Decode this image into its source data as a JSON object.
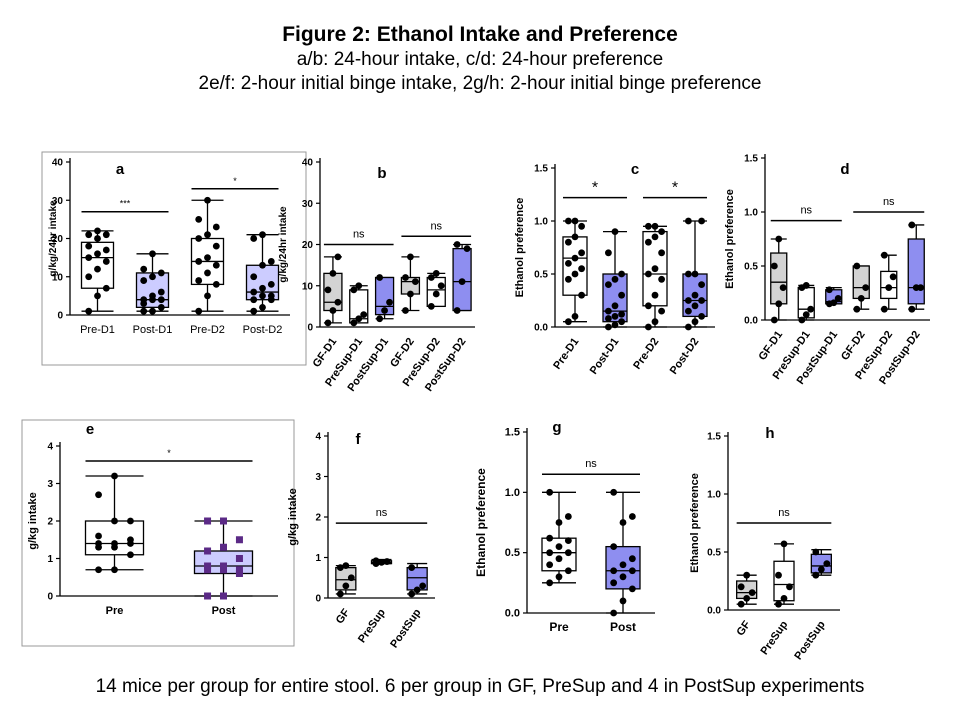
{
  "header": {
    "title": "Figure 2: Ethanol Intake and Preference",
    "lines": [
      "a/b: 24-hour intake, c/d: 24-hour preference",
      "2e/f: 2-hour initial binge intake, 2g/h: 2-hour initial binge preference"
    ]
  },
  "footer": "14 mice per group for entire stool. 6 per group in GF, PreSup and 4 in PostSup experiments",
  "colors": {
    "gray": "#d3d3d3",
    "blue": "#8e8ef0",
    "lightblue": "#ccccff",
    "white": "#ffffff",
    "purple": "#5b2a86"
  },
  "chart_data": [
    {
      "panel": "a",
      "type": "box",
      "ylabel": "g/kg/24hr intake",
      "ylim": [
        0,
        40
      ],
      "yticks": [
        0,
        10,
        20,
        30,
        40
      ],
      "categories": [
        "Pre-D1",
        "Post-D1",
        "Pre-D2",
        "Post-D2"
      ],
      "boxes": [
        {
          "min": 1,
          "q1": 7,
          "median": 15,
          "q3": 19,
          "max": 22,
          "fill": "white",
          "points": [
            1,
            5,
            7,
            10,
            12,
            14,
            15,
            16,
            17,
            18,
            20,
            21,
            21,
            22
          ]
        },
        {
          "min": 1,
          "q1": 2,
          "median": 4,
          "q3": 11,
          "max": 16,
          "fill": "lightblue",
          "points": [
            1,
            1,
            2,
            3,
            4,
            4,
            4,
            5,
            6,
            9,
            10,
            11,
            12,
            16
          ]
        },
        {
          "min": 1,
          "q1": 8,
          "median": 14,
          "q3": 20,
          "max": 30,
          "fill": "white",
          "points": [
            1,
            5,
            8,
            9,
            11,
            13,
            14,
            15,
            18,
            20,
            21,
            23,
            25,
            30
          ]
        },
        {
          "min": 1,
          "q1": 4,
          "median": 6,
          "q3": 13,
          "max": 21,
          "fill": "lightblue",
          "points": [
            1,
            2,
            4,
            4,
            5,
            5,
            6,
            7,
            8,
            10,
            13,
            14,
            20,
            21
          ]
        }
      ],
      "brackets": [
        {
          "from": 0,
          "to": 1,
          "y": 27,
          "label": "***"
        },
        {
          "from": 2,
          "to": 3,
          "y": 33,
          "label": "*"
        }
      ]
    },
    {
      "panel": "b",
      "type": "box",
      "ylabel": "g/kg/24hr intake",
      "ylim": [
        0,
        40
      ],
      "yticks": [
        0,
        10,
        20,
        30,
        40
      ],
      "categories": [
        "GF-D1",
        "PreSup-D1",
        "PostSup-D1",
        "GF-D2",
        "PreSup-D2",
        "PostSup-D2"
      ],
      "boxes": [
        {
          "min": 1,
          "q1": 4,
          "median": 6,
          "q3": 13,
          "max": 17,
          "fill": "gray",
          "points": [
            1,
            4,
            6,
            9,
            13,
            17
          ]
        },
        {
          "min": 1,
          "q1": 1,
          "median": 2,
          "q3": 9,
          "max": 10,
          "fill": "white",
          "points": [
            1,
            2,
            3,
            9,
            10
          ]
        },
        {
          "min": 2,
          "q1": 3,
          "median": 5,
          "q3": 12,
          "max": 12,
          "fill": "blue",
          "points": [
            2,
            4,
            6,
            12
          ]
        },
        {
          "min": 4,
          "q1": 8,
          "median": 11,
          "q3": 12,
          "max": 17,
          "fill": "gray",
          "points": [
            4,
            8,
            11,
            12,
            17
          ]
        },
        {
          "min": 5,
          "q1": 5,
          "median": 9,
          "q3": 12,
          "max": 13,
          "fill": "white",
          "points": [
            5,
            8,
            10,
            12,
            13
          ]
        },
        {
          "min": 4,
          "q1": 4,
          "median": 11,
          "q3": 19,
          "max": 20,
          "fill": "blue",
          "points": [
            4,
            11,
            19,
            20
          ]
        }
      ],
      "brackets": [
        {
          "from": 0,
          "to": 2,
          "y": 20,
          "label": "ns"
        },
        {
          "from": 3,
          "to": 5,
          "y": 22,
          "label": "ns"
        }
      ]
    },
    {
      "panel": "c",
      "type": "box",
      "ylabel": "Ethanol preference",
      "ylim": [
        0,
        1.5
      ],
      "yticks": [
        0.0,
        0.5,
        1.0,
        1.5
      ],
      "categories": [
        "Pre-D1",
        "Post-D1",
        "Pre-D2",
        "Post-D2"
      ],
      "boxes": [
        {
          "min": 0.05,
          "q1": 0.3,
          "median": 0.65,
          "q3": 0.85,
          "max": 1.0,
          "fill": "white",
          "points": [
            0.05,
            0.1,
            0.3,
            0.45,
            0.5,
            0.55,
            0.6,
            0.65,
            0.7,
            0.8,
            0.85,
            0.95,
            1.0,
            1.0
          ]
        },
        {
          "min": 0.0,
          "q1": 0.05,
          "median": 0.15,
          "q3": 0.5,
          "max": 0.9,
          "fill": "blue",
          "points": [
            0.0,
            0.02,
            0.05,
            0.08,
            0.1,
            0.12,
            0.15,
            0.2,
            0.3,
            0.4,
            0.45,
            0.5,
            0.7,
            0.9
          ]
        },
        {
          "min": 0.0,
          "q1": 0.2,
          "median": 0.5,
          "q3": 0.9,
          "max": 0.95,
          "fill": "white",
          "points": [
            0.0,
            0.05,
            0.15,
            0.2,
            0.3,
            0.45,
            0.5,
            0.55,
            0.7,
            0.8,
            0.85,
            0.9,
            0.95,
            0.95
          ]
        },
        {
          "min": 0.0,
          "q1": 0.1,
          "median": 0.25,
          "q3": 0.5,
          "max": 1.0,
          "fill": "blue",
          "points": [
            0.0,
            0.05,
            0.1,
            0.15,
            0.2,
            0.25,
            0.25,
            0.3,
            0.4,
            0.5,
            0.5,
            1.0,
            1.0
          ]
        }
      ],
      "brackets": [
        {
          "from": 0,
          "to": 1,
          "y": 1.22,
          "label": "*"
        },
        {
          "from": 2,
          "to": 3,
          "y": 1.22,
          "label": "*"
        }
      ]
    },
    {
      "panel": "d",
      "type": "box",
      "ylabel": "Ethanol preference",
      "ylim": [
        0,
        1.5
      ],
      "yticks": [
        0.0,
        0.5,
        1.0,
        1.5
      ],
      "categories": [
        "GF-D1",
        "PreSup-D1",
        "PostSup-D1",
        "GF-D2",
        "PreSup-D2",
        "PostSup-D2"
      ],
      "boxes": [
        {
          "min": 0.0,
          "q1": 0.15,
          "median": 0.35,
          "q3": 0.62,
          "max": 0.75,
          "fill": "gray",
          "points": [
            0.0,
            0.15,
            0.3,
            0.5,
            0.75
          ]
        },
        {
          "min": 0.0,
          "q1": 0.02,
          "median": 0.1,
          "q3": 0.3,
          "max": 0.32,
          "fill": "white",
          "points": [
            0.0,
            0.05,
            0.1,
            0.3,
            0.32
          ]
        },
        {
          "min": 0.15,
          "q1": 0.15,
          "median": 0.17,
          "q3": 0.28,
          "max": 0.3,
          "fill": "blue",
          "points": [
            0.15,
            0.16,
            0.2,
            0.28
          ]
        },
        {
          "min": 0.1,
          "q1": 0.2,
          "median": 0.3,
          "q3": 0.5,
          "max": 0.5,
          "fill": "gray",
          "points": [
            0.1,
            0.2,
            0.3,
            0.5
          ]
        },
        {
          "min": 0.1,
          "q1": 0.2,
          "median": 0.3,
          "q3": 0.45,
          "max": 0.6,
          "fill": "white",
          "points": [
            0.1,
            0.3,
            0.4,
            0.6
          ]
        },
        {
          "min": 0.1,
          "q1": 0.15,
          "median": 0.3,
          "q3": 0.75,
          "max": 0.88,
          "fill": "blue",
          "points": [
            0.1,
            0.3,
            0.3,
            0.88
          ]
        }
      ],
      "brackets": [
        {
          "from": 0,
          "to": 2,
          "y": 0.92,
          "label": "ns"
        },
        {
          "from": 3,
          "to": 5,
          "y": 1.0,
          "label": "ns"
        }
      ]
    },
    {
      "panel": "e",
      "type": "box",
      "ylabel": "g/kg intake",
      "ylim": [
        0,
        4
      ],
      "yticks": [
        0,
        1,
        2,
        3,
        4
      ],
      "categories": [
        "Pre",
        "Post"
      ],
      "boxes": [
        {
          "min": 0.7,
          "q1": 1.1,
          "median": 1.4,
          "q3": 2.0,
          "max": 3.2,
          "fill": "white",
          "marker": "circle",
          "color": "#000000",
          "points": [
            0.7,
            0.7,
            1.1,
            1.3,
            1.3,
            1.4,
            1.4,
            1.4,
            1.5,
            1.6,
            2.0,
            2.0,
            2.7,
            3.2
          ]
        },
        {
          "min": 0.0,
          "q1": 0.6,
          "median": 0.8,
          "q3": 1.2,
          "max": 2.0,
          "fill": "lightblue",
          "marker": "square",
          "color": "#5b2a86",
          "points": [
            0.0,
            0.0,
            0.6,
            0.7,
            0.7,
            0.7,
            0.8,
            0.8,
            1.0,
            1.2,
            1.3,
            1.5,
            2.0,
            2.0
          ]
        }
      ],
      "brackets": [
        {
          "from": 0,
          "to": 1,
          "y": 3.6,
          "label": "*"
        }
      ]
    },
    {
      "panel": "f",
      "type": "box",
      "ylabel": "g/kg intake",
      "ylim": [
        0,
        4
      ],
      "yticks": [
        0,
        1,
        2,
        3,
        4
      ],
      "categories": [
        "GF",
        "PreSup",
        "PostSup"
      ],
      "boxes": [
        {
          "min": 0.1,
          "q1": 0.2,
          "median": 0.45,
          "q3": 0.75,
          "max": 0.8,
          "fill": "gray",
          "points": [
            0.1,
            0.3,
            0.5,
            0.75,
            0.8
          ]
        },
        {
          "min": 0.85,
          "q1": 0.85,
          "median": 0.88,
          "q3": 0.92,
          "max": 0.95,
          "fill": "white",
          "points": [
            0.85,
            0.88,
            0.9,
            0.92
          ]
        },
        {
          "min": 0.1,
          "q1": 0.2,
          "median": 0.5,
          "q3": 0.75,
          "max": 0.85,
          "fill": "blue",
          "points": [
            0.1,
            0.2,
            0.3,
            0.75
          ]
        }
      ],
      "brackets": [
        {
          "from": 0,
          "to": 2,
          "y": 1.85,
          "label": "ns"
        }
      ]
    },
    {
      "panel": "g",
      "type": "box",
      "ylabel": "Ethanol preference",
      "ylim": [
        0,
        1.5
      ],
      "yticks": [
        0.0,
        0.5,
        1.0,
        1.5
      ],
      "categories": [
        "Pre",
        "Post"
      ],
      "boxes": [
        {
          "min": 0.25,
          "q1": 0.35,
          "median": 0.5,
          "q3": 0.62,
          "max": 1.0,
          "fill": "white",
          "points": [
            0.25,
            0.3,
            0.35,
            0.4,
            0.45,
            0.5,
            0.5,
            0.55,
            0.6,
            0.62,
            0.75,
            0.8,
            1.0
          ]
        },
        {
          "min": 0.0,
          "q1": 0.2,
          "median": 0.35,
          "q3": 0.55,
          "max": 1.0,
          "fill": "blue",
          "points": [
            0.0,
            0.1,
            0.2,
            0.25,
            0.3,
            0.35,
            0.35,
            0.4,
            0.45,
            0.55,
            0.75,
            0.8,
            1.0
          ]
        }
      ],
      "brackets": [
        {
          "from": 0,
          "to": 1,
          "y": 1.15,
          "label": "ns"
        }
      ]
    },
    {
      "panel": "h",
      "type": "box",
      "ylabel": "Ethanol preference",
      "ylim": [
        0,
        1.5
      ],
      "yticks": [
        0.0,
        0.5,
        1.0,
        1.5
      ],
      "categories": [
        "GF",
        "PreSup",
        "PostSup"
      ],
      "boxes": [
        {
          "min": 0.05,
          "q1": 0.1,
          "median": 0.15,
          "q3": 0.25,
          "max": 0.3,
          "fill": "gray",
          "points": [
            0.05,
            0.1,
            0.15,
            0.2,
            0.3
          ]
        },
        {
          "min": 0.05,
          "q1": 0.08,
          "median": 0.22,
          "q3": 0.42,
          "max": 0.57,
          "fill": "white",
          "points": [
            0.05,
            0.1,
            0.2,
            0.3,
            0.57
          ]
        },
        {
          "min": 0.3,
          "q1": 0.32,
          "median": 0.38,
          "q3": 0.48,
          "max": 0.52,
          "fill": "blue",
          "points": [
            0.3,
            0.35,
            0.4,
            0.5
          ]
        }
      ],
      "brackets": [
        {
          "from": 0,
          "to": 2,
          "y": 0.75,
          "label": "ns"
        }
      ]
    }
  ]
}
